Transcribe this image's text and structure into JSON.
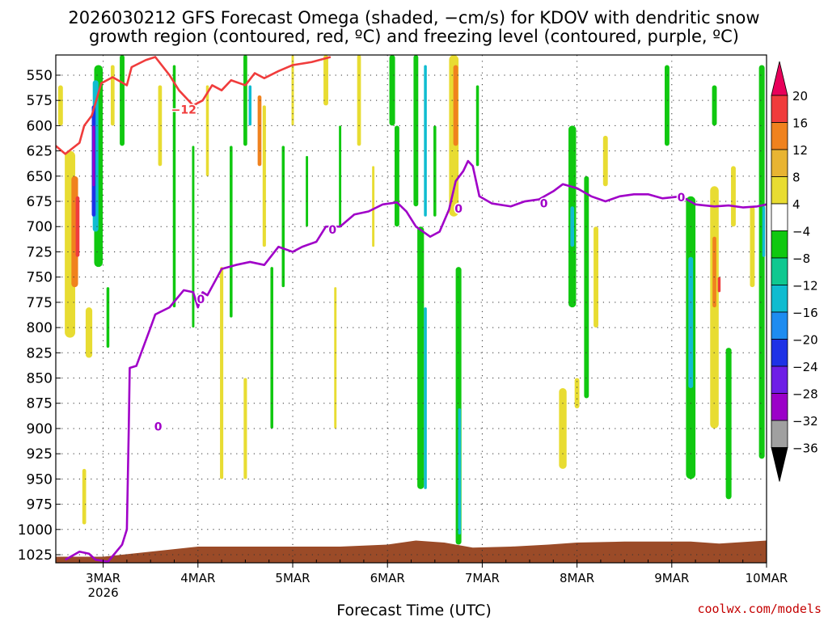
{
  "chart_data": {
    "type": "heatmap",
    "title_line1": "2026030212 GFS Forecast Omega (shaded, −cm/s) for KDOV with dendritic snow",
    "title_line2": "growth region (contoured, red, ºC) and freezing level (contoured, purple, ºC)",
    "xlabel": "Forecast Time (UTC)",
    "credit": "coolwx.com/models",
    "x_ticks": [
      "3MAR",
      "4MAR",
      "5MAR",
      "6MAR",
      "7MAR",
      "8MAR",
      "9MAR",
      "10MAR"
    ],
    "x_tick_sub": "2026",
    "x_range_days": [
      2.5,
      10.0
    ],
    "y_ticks": [
      550,
      575,
      600,
      625,
      650,
      675,
      700,
      725,
      750,
      775,
      800,
      825,
      850,
      875,
      900,
      925,
      950,
      975,
      1000,
      1025
    ],
    "y_range_hPa": [
      530,
      1033
    ],
    "grid": true,
    "colorbar": {
      "labels": [
        "20",
        "16",
        "12",
        "8",
        "4",
        "−4",
        "−8",
        "−12",
        "−16",
        "−20",
        "−24",
        "−28",
        "−32",
        "−36"
      ],
      "colors": [
        "#e8005a",
        "#f03c3c",
        "#f0821e",
        "#e8b432",
        "#e8dc32",
        "#ffffff",
        "#10c810",
        "#10c890",
        "#10bcd0",
        "#1e8cf0",
        "#1e32e6",
        "#6e1ee6",
        "#9b00c8",
        "#a0a0a0",
        "#000000"
      ]
    },
    "freezing_level": {
      "label": "0",
      "color": "#a000c8",
      "points": [
        [
          2.6,
          1030
        ],
        [
          2.75,
          1022
        ],
        [
          2.85,
          1024
        ],
        [
          2.92,
          1030
        ],
        [
          3.05,
          1032
        ],
        [
          3.2,
          1015
        ],
        [
          3.25,
          1000
        ],
        [
          3.27,
          900
        ],
        [
          3.28,
          840
        ],
        [
          3.35,
          838
        ],
        [
          3.5,
          800
        ],
        [
          3.55,
          787
        ],
        [
          3.7,
          780
        ],
        [
          3.85,
          763
        ],
        [
          3.95,
          765
        ],
        [
          4.0,
          780
        ],
        [
          4.05,
          765
        ],
        [
          4.1,
          768
        ],
        [
          4.25,
          742
        ],
        [
          4.4,
          738
        ],
        [
          4.55,
          735
        ],
        [
          4.7,
          738
        ],
        [
          4.85,
          720
        ],
        [
          5.0,
          725
        ],
        [
          5.1,
          720
        ],
        [
          5.25,
          715
        ],
        [
          5.35,
          700
        ],
        [
          5.5,
          700
        ],
        [
          5.65,
          688
        ],
        [
          5.8,
          685
        ],
        [
          5.95,
          678
        ],
        [
          6.1,
          676
        ],
        [
          6.2,
          685
        ],
        [
          6.3,
          700
        ],
        [
          6.45,
          710
        ],
        [
          6.55,
          705
        ],
        [
          6.65,
          683
        ],
        [
          6.72,
          655
        ],
        [
          6.8,
          645
        ],
        [
          6.85,
          635
        ],
        [
          6.9,
          640
        ],
        [
          6.97,
          670
        ],
        [
          7.1,
          677
        ],
        [
          7.3,
          680
        ],
        [
          7.45,
          675
        ],
        [
          7.6,
          673
        ],
        [
          7.75,
          665
        ],
        [
          7.85,
          658
        ],
        [
          8.0,
          662
        ],
        [
          8.15,
          670
        ],
        [
          8.3,
          675
        ],
        [
          8.45,
          670
        ],
        [
          8.6,
          668
        ],
        [
          8.75,
          668
        ],
        [
          8.9,
          672
        ],
        [
          9.1,
          670
        ],
        [
          9.25,
          678
        ],
        [
          9.45,
          680
        ],
        [
          9.6,
          679
        ],
        [
          9.75,
          681
        ],
        [
          9.9,
          680
        ],
        [
          10.0,
          678
        ]
      ]
    },
    "dgz_contour": {
      "label": "−12",
      "color": "#f03c3c",
      "points": [
        [
          2.5,
          620
        ],
        [
          2.6,
          628
        ],
        [
          2.75,
          617
        ],
        [
          2.8,
          600
        ],
        [
          2.88,
          590
        ],
        [
          2.98,
          558
        ],
        [
          3.1,
          552
        ],
        [
          3.25,
          560
        ],
        [
          3.3,
          542
        ],
        [
          3.45,
          535
        ],
        [
          3.55,
          532
        ],
        [
          3.7,
          550
        ],
        [
          3.8,
          565
        ],
        [
          3.95,
          580
        ],
        [
          4.05,
          575
        ],
        [
          4.15,
          560
        ],
        [
          4.25,
          565
        ],
        [
          4.35,
          555
        ],
        [
          4.5,
          560
        ],
        [
          4.6,
          548
        ],
        [
          4.7,
          553
        ],
        [
          4.85,
          546
        ],
        [
          5.0,
          540
        ],
        [
          5.2,
          537
        ],
        [
          5.4,
          532
        ]
      ]
    },
    "omega_patches": [
      {
        "x": 2.65,
        "p1": 625,
        "p2": 810,
        "w": 0.11,
        "v": 6
      },
      {
        "x": 2.7,
        "p1": 650,
        "p2": 760,
        "w": 0.07,
        "v": 12
      },
      {
        "x": 2.73,
        "p1": 670,
        "p2": 730,
        "w": 0.04,
        "v": 18
      },
      {
        "x": 2.95,
        "p1": 540,
        "p2": 740,
        "w": 0.09,
        "v": -6
      },
      {
        "x": 2.92,
        "p1": 555,
        "p2": 705,
        "w": 0.06,
        "v": -14
      },
      {
        "x": 2.9,
        "p1": 580,
        "p2": 690,
        "w": 0.04,
        "v": -22
      },
      {
        "x": 2.9,
        "p1": 600,
        "p2": 660,
        "w": 0.025,
        "v": -30
      },
      {
        "x": 3.2,
        "p1": 530,
        "p2": 620,
        "w": 0.05,
        "v": -6
      },
      {
        "x": 3.1,
        "p1": 540,
        "p2": 600,
        "w": 0.04,
        "v": 6
      },
      {
        "x": 2.55,
        "p1": 560,
        "p2": 600,
        "w": 0.05,
        "v": 6
      },
      {
        "x": 2.85,
        "p1": 780,
        "p2": 830,
        "w": 0.07,
        "v": 6
      },
      {
        "x": 2.8,
        "p1": 940,
        "p2": 995,
        "w": 0.04,
        "v": 6
      },
      {
        "x": 3.05,
        "p1": 760,
        "p2": 820,
        "w": 0.03,
        "v": -6
      },
      {
        "x": 3.6,
        "p1": 560,
        "p2": 640,
        "w": 0.04,
        "v": 6
      },
      {
        "x": 3.75,
        "p1": 540,
        "p2": 780,
        "w": 0.03,
        "v": -6
      },
      {
        "x": 3.95,
        "p1": 620,
        "p2": 800,
        "w": 0.025,
        "v": -6
      },
      {
        "x": 4.1,
        "p1": 560,
        "p2": 650,
        "w": 0.03,
        "v": 6
      },
      {
        "x": 4.25,
        "p1": 740,
        "p2": 950,
        "w": 0.035,
        "v": 6
      },
      {
        "x": 4.35,
        "p1": 620,
        "p2": 790,
        "w": 0.03,
        "v": -6
      },
      {
        "x": 4.5,
        "p1": 530,
        "p2": 620,
        "w": 0.04,
        "v": -6
      },
      {
        "x": 4.55,
        "p1": 560,
        "p2": 600,
        "w": 0.03,
        "v": -14
      },
      {
        "x": 4.65,
        "p1": 570,
        "p2": 640,
        "w": 0.04,
        "v": 12
      },
      {
        "x": 4.7,
        "p1": 580,
        "p2": 720,
        "w": 0.035,
        "v": 6
      },
      {
        "x": 4.5,
        "p1": 850,
        "p2": 950,
        "w": 0.035,
        "v": 6
      },
      {
        "x": 4.78,
        "p1": 740,
        "p2": 900,
        "w": 0.03,
        "v": -6
      },
      {
        "x": 4.9,
        "p1": 620,
        "p2": 760,
        "w": 0.03,
        "v": -6
      },
      {
        "x": 5.0,
        "p1": 530,
        "p2": 600,
        "w": 0.025,
        "v": 6
      },
      {
        "x": 5.15,
        "p1": 630,
        "p2": 700,
        "w": 0.025,
        "v": -6
      },
      {
        "x": 5.35,
        "p1": 530,
        "p2": 580,
        "w": 0.05,
        "v": 6
      },
      {
        "x": 5.45,
        "p1": 760,
        "p2": 900,
        "w": 0.025,
        "v": 6
      },
      {
        "x": 5.5,
        "p1": 600,
        "p2": 700,
        "w": 0.025,
        "v": -6
      },
      {
        "x": 5.7,
        "p1": 530,
        "p2": 620,
        "w": 0.04,
        "v": 6
      },
      {
        "x": 5.85,
        "p1": 640,
        "p2": 720,
        "w": 0.025,
        "v": 6
      },
      {
        "x": 6.05,
        "p1": 530,
        "p2": 600,
        "w": 0.06,
        "v": -6
      },
      {
        "x": 6.1,
        "p1": 600,
        "p2": 700,
        "w": 0.05,
        "v": -6
      },
      {
        "x": 6.3,
        "p1": 530,
        "p2": 680,
        "w": 0.05,
        "v": -6
      },
      {
        "x": 6.4,
        "p1": 540,
        "p2": 690,
        "w": 0.03,
        "v": -14
      },
      {
        "x": 6.35,
        "p1": 700,
        "p2": 960,
        "w": 0.07,
        "v": -6
      },
      {
        "x": 6.4,
        "p1": 780,
        "p2": 960,
        "w": 0.03,
        "v": -14
      },
      {
        "x": 6.5,
        "p1": 600,
        "p2": 690,
        "w": 0.03,
        "v": -6
      },
      {
        "x": 6.7,
        "p1": 530,
        "p2": 690,
        "w": 0.1,
        "v": 6
      },
      {
        "x": 6.72,
        "p1": 540,
        "p2": 620,
        "w": 0.05,
        "v": 12
      },
      {
        "x": 6.75,
        "p1": 740,
        "p2": 1015,
        "w": 0.06,
        "v": -6
      },
      {
        "x": 6.76,
        "p1": 880,
        "p2": 1005,
        "w": 0.03,
        "v": -14
      },
      {
        "x": 6.95,
        "p1": 560,
        "p2": 640,
        "w": 0.03,
        "v": -6
      },
      {
        "x": 7.95,
        "p1": 600,
        "p2": 780,
        "w": 0.08,
        "v": -6
      },
      {
        "x": 7.95,
        "p1": 680,
        "p2": 720,
        "w": 0.04,
        "v": -14
      },
      {
        "x": 8.1,
        "p1": 650,
        "p2": 870,
        "w": 0.05,
        "v": -6
      },
      {
        "x": 8.2,
        "p1": 700,
        "p2": 800,
        "w": 0.05,
        "v": 6
      },
      {
        "x": 7.85,
        "p1": 860,
        "p2": 940,
        "w": 0.08,
        "v": 6
      },
      {
        "x": 8.0,
        "p1": 850,
        "p2": 880,
        "w": 0.05,
        "v": 6
      },
      {
        "x": 8.3,
        "p1": 610,
        "p2": 660,
        "w": 0.05,
        "v": 6
      },
      {
        "x": 8.95,
        "p1": 540,
        "p2": 620,
        "w": 0.05,
        "v": -6
      },
      {
        "x": 9.2,
        "p1": 670,
        "p2": 950,
        "w": 0.1,
        "v": -6
      },
      {
        "x": 9.2,
        "p1": 730,
        "p2": 860,
        "w": 0.05,
        "v": -14
      },
      {
        "x": 9.45,
        "p1": 560,
        "p2": 600,
        "w": 0.05,
        "v": -6
      },
      {
        "x": 9.45,
        "p1": 660,
        "p2": 900,
        "w": 0.09,
        "v": 6
      },
      {
        "x": 9.45,
        "p1": 710,
        "p2": 780,
        "w": 0.04,
        "v": 12
      },
      {
        "x": 9.5,
        "p1": 750,
        "p2": 765,
        "w": 0.03,
        "v": 18
      },
      {
        "x": 9.6,
        "p1": 820,
        "p2": 970,
        "w": 0.06,
        "v": -6
      },
      {
        "x": 9.65,
        "p1": 640,
        "p2": 700,
        "w": 0.05,
        "v": 6
      },
      {
        "x": 9.85,
        "p1": 680,
        "p2": 760,
        "w": 0.05,
        "v": 6
      },
      {
        "x": 9.95,
        "p1": 540,
        "p2": 930,
        "w": 0.06,
        "v": -6
      },
      {
        "x": 9.97,
        "p1": 680,
        "p2": 730,
        "w": 0.03,
        "v": -14
      }
    ],
    "surface_color": "#9b4b28"
  }
}
